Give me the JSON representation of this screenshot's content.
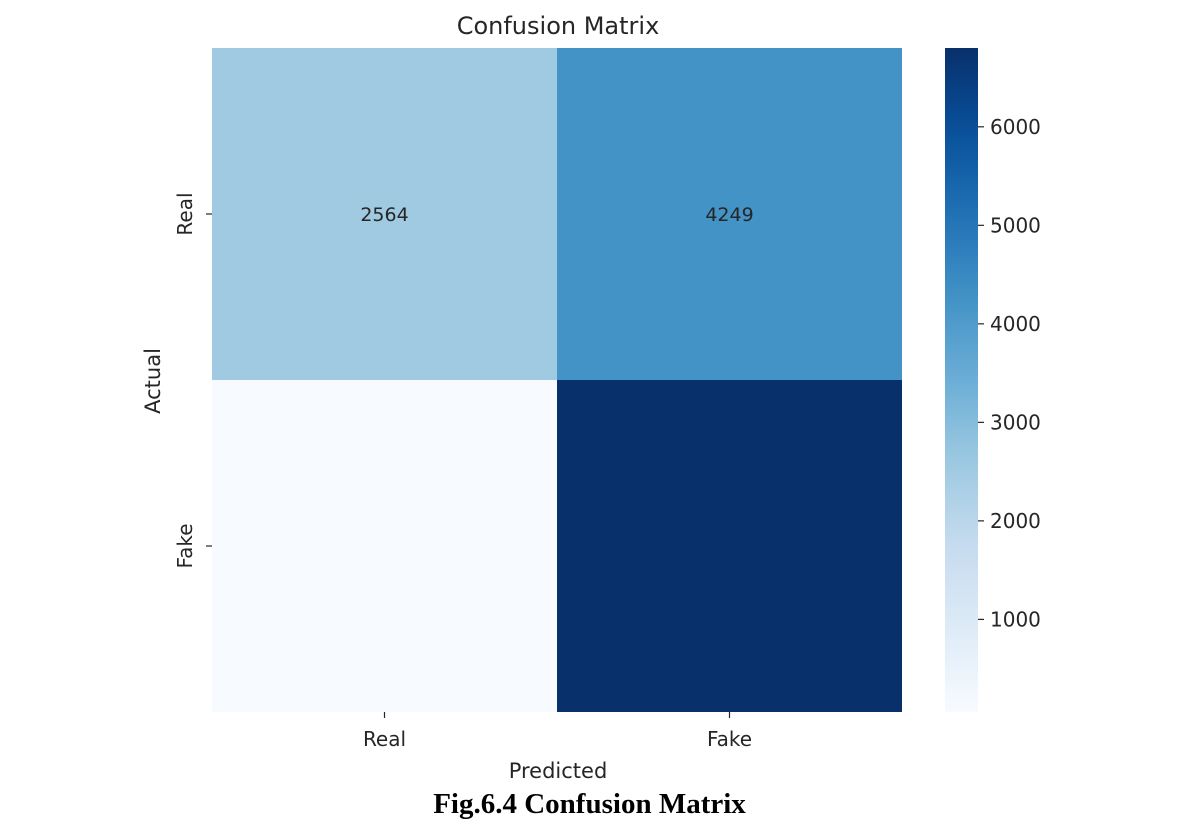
{
  "chart_data": {
    "type": "heatmap",
    "title": "Confusion Matrix",
    "xlabel": "Predicted",
    "ylabel": "Actual",
    "x_categories": [
      "Real",
      "Fake"
    ],
    "y_categories": [
      "Real",
      "Fake"
    ],
    "values": [
      [
        2564,
        4249
      ],
      [
        60,
        6800
      ]
    ],
    "cell_labels": [
      [
        "2564",
        "4249"
      ],
      [
        "",
        ""
      ]
    ],
    "colormap": "Blues",
    "colorbar": {
      "range": [
        60,
        6800
      ],
      "ticks": [
        1000,
        2000,
        3000,
        4000,
        5000,
        6000
      ]
    }
  },
  "caption": "Fig.6.4 Confusion Matrix"
}
